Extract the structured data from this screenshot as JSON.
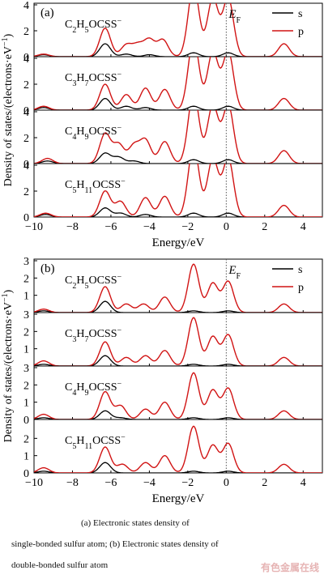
{
  "chart_data": [
    {
      "type": "line",
      "panel": "(a)",
      "ylabel": "Density of states/(electrons·eV⁻¹)",
      "xlabel": "Energy/eV",
      "xlim": [
        -10,
        5
      ],
      "xticks": [
        -10,
        -8,
        -6,
        -4,
        -2,
        0,
        2,
        4
      ],
      "fermi_label": "E_F",
      "legend": [
        "s",
        "p"
      ],
      "legend_position": "top-right",
      "series_colors": {
        "s": "#000000",
        "p": "#d11414"
      },
      "subplots": [
        {
          "label": "C2H5OCSS−",
          "ylim": [
            0,
            4
          ],
          "yticks": [
            0,
            2,
            4
          ],
          "p_peaks": [
            [
              -9.5,
              0.2
            ],
            [
              -6.3,
              2.2
            ],
            [
              -5.2,
              0.9
            ],
            [
              -4.6,
              0.9
            ],
            [
              -4.0,
              1.3
            ],
            [
              -3.3,
              1.3
            ],
            [
              -1.7,
              5.5
            ],
            [
              -0.7,
              4.5
            ],
            [
              0.1,
              4.5
            ],
            [
              3.0,
              1.0
            ]
          ],
          "s_peaks": [
            [
              -9.5,
              0.15
            ],
            [
              -6.3,
              1.0
            ],
            [
              -5.2,
              0.2
            ],
            [
              -4.0,
              0.15
            ],
            [
              -1.7,
              0.3
            ],
            [
              0.1,
              0.3
            ]
          ]
        },
        {
          "label": "C3H7OCSS−",
          "ylim": [
            0,
            4
          ],
          "yticks": [
            0,
            2,
            4
          ],
          "p_peaks": [
            [
              -9.5,
              0.3
            ],
            [
              -6.3,
              2.0
            ],
            [
              -5.2,
              1.2
            ],
            [
              -4.2,
              1.7
            ],
            [
              -3.2,
              1.6
            ],
            [
              -1.7,
              5.5
            ],
            [
              -0.7,
              4.5
            ],
            [
              0.1,
              4.5
            ],
            [
              3.0,
              0.9
            ]
          ],
          "s_peaks": [
            [
              -9.5,
              0.2
            ],
            [
              -6.3,
              0.9
            ],
            [
              -5.2,
              0.3
            ],
            [
              -4.2,
              0.2
            ],
            [
              -1.7,
              0.3
            ],
            [
              0.1,
              0.3
            ]
          ]
        },
        {
          "label": "C4H9OCSS−",
          "ylim": [
            0,
            4
          ],
          "yticks": [
            0,
            2,
            4
          ],
          "p_peaks": [
            [
              -9.3,
              0.4
            ],
            [
              -6.3,
              2.3
            ],
            [
              -5.6,
              1.5
            ],
            [
              -4.8,
              1.4
            ],
            [
              -4.2,
              1.8
            ],
            [
              -3.2,
              1.7
            ],
            [
              -1.7,
              5.5
            ],
            [
              -0.7,
              4.5
            ],
            [
              0.1,
              4.5
            ],
            [
              3.0,
              1.0
            ]
          ],
          "s_peaks": [
            [
              -9.3,
              0.2
            ],
            [
              -6.3,
              0.8
            ],
            [
              -5.6,
              0.5
            ],
            [
              -4.8,
              0.2
            ],
            [
              -1.7,
              0.3
            ],
            [
              0.1,
              0.3
            ]
          ]
        },
        {
          "label": "C5H11OCSS−",
          "ylim": [
            0,
            4
          ],
          "yticks": [
            0,
            2,
            4
          ],
          "p_peaks": [
            [
              -9.4,
              0.3
            ],
            [
              -6.3,
              2.0
            ],
            [
              -5.5,
              1.2
            ],
            [
              -4.2,
              1.5
            ],
            [
              -3.2,
              1.6
            ],
            [
              -1.7,
              5.5
            ],
            [
              -0.7,
              4.5
            ],
            [
              0.1,
              4.5
            ],
            [
              3.0,
              0.9
            ]
          ],
          "s_peaks": [
            [
              -9.4,
              0.2
            ],
            [
              -6.3,
              0.7
            ],
            [
              -5.5,
              0.3
            ],
            [
              -4.2,
              0.2
            ],
            [
              -1.7,
              0.3
            ],
            [
              0.1,
              0.3
            ]
          ]
        }
      ]
    },
    {
      "type": "line",
      "panel": "(b)",
      "ylabel": "Density of states/(electrons·eV⁻¹)",
      "xlabel": "Energy/eV",
      "xlim": [
        -10,
        5
      ],
      "xticks": [
        -10,
        -8,
        -6,
        -4,
        -2,
        0,
        2,
        4
      ],
      "fermi_label": "E_F",
      "legend": [
        "s",
        "p"
      ],
      "legend_position": "top-right",
      "series_colors": {
        "s": "#000000",
        "p": "#d11414"
      },
      "subplots": [
        {
          "label": "C2H5OCSS−",
          "ylim": [
            0,
            3
          ],
          "yticks": [
            1,
            2,
            3
          ],
          "p_peaks": [
            [
              -9.5,
              0.2
            ],
            [
              -6.3,
              1.5
            ],
            [
              -5.2,
              0.5
            ],
            [
              -4.3,
              0.5
            ],
            [
              -3.2,
              0.9
            ],
            [
              -1.7,
              2.8
            ],
            [
              -0.7,
              1.7
            ],
            [
              0.1,
              1.8
            ],
            [
              3.0,
              0.5
            ]
          ],
          "s_peaks": [
            [
              -9.5,
              0.1
            ],
            [
              -6.3,
              0.65
            ],
            [
              -1.7,
              0.1
            ],
            [
              0.1,
              0.1
            ]
          ]
        },
        {
          "label": "C3H7OCSS−",
          "ylim": [
            0,
            3
          ],
          "yticks": [
            1,
            2,
            3
          ],
          "p_peaks": [
            [
              -9.5,
              0.3
            ],
            [
              -6.3,
              1.4
            ],
            [
              -5.2,
              0.5
            ],
            [
              -4.2,
              0.6
            ],
            [
              -3.2,
              0.9
            ],
            [
              -1.7,
              2.8
            ],
            [
              -0.7,
              1.7
            ],
            [
              0.1,
              1.8
            ],
            [
              3.0,
              0.5
            ]
          ],
          "s_peaks": [
            [
              -9.5,
              0.1
            ],
            [
              -6.3,
              0.6
            ],
            [
              -1.7,
              0.1
            ],
            [
              0.1,
              0.1
            ]
          ]
        },
        {
          "label": "C4H9OCSS−",
          "ylim": [
            0,
            3
          ],
          "yticks": [
            0,
            1,
            2,
            3
          ],
          "p_peaks": [
            [
              -9.5,
              0.3
            ],
            [
              -6.3,
              1.6
            ],
            [
              -5.5,
              0.8
            ],
            [
              -4.2,
              0.6
            ],
            [
              -3.2,
              1.0
            ],
            [
              -1.7,
              2.7
            ],
            [
              -0.7,
              1.7
            ],
            [
              0.1,
              1.8
            ],
            [
              3.0,
              0.5
            ]
          ],
          "s_peaks": [
            [
              -9.5,
              0.1
            ],
            [
              -6.3,
              0.5
            ],
            [
              -5.5,
              0.1
            ],
            [
              -1.7,
              0.1
            ],
            [
              0.1,
              0.1
            ]
          ]
        },
        {
          "label": "C5H11OCSS−",
          "ylim": [
            0,
            3
          ],
          "yticks": [
            0,
            1,
            2
          ],
          "p_peaks": [
            [
              -9.5,
              0.3
            ],
            [
              -6.3,
              1.5
            ],
            [
              -5.4,
              0.5
            ],
            [
              -4.2,
              0.6
            ],
            [
              -3.2,
              1.0
            ],
            [
              -1.7,
              2.7
            ],
            [
              -0.7,
              1.6
            ],
            [
              0.1,
              1.7
            ],
            [
              3.0,
              0.5
            ]
          ],
          "s_peaks": [
            [
              -9.5,
              0.1
            ],
            [
              -6.3,
              0.6
            ],
            [
              -1.7,
              0.1
            ],
            [
              0.1,
              0.1
            ]
          ]
        }
      ]
    }
  ],
  "caption": {
    "line1": "(a)  Electronic states density of",
    "line2": "single-bonded sulfur atom; (b) Electronic states density of",
    "line3": "double-bonded sulfur atom"
  },
  "watermark": "有色金属在线"
}
